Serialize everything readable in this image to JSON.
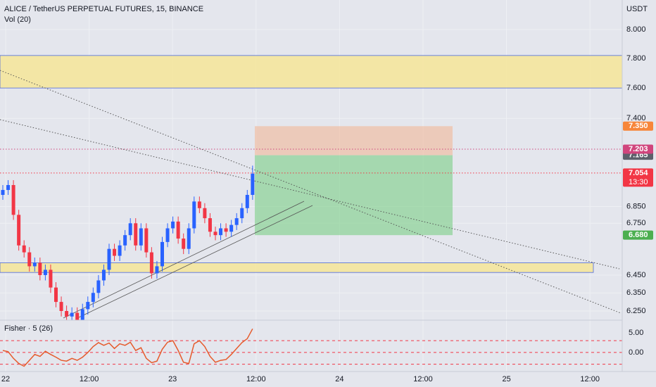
{
  "chart_data": {
    "type": "candlestick",
    "title": "ALICE / TetherUS PERPETUAL FUTURES, 15, BINANCE",
    "volume_label": "Vol (20)",
    "currency": "USDT",
    "log_scale": true,
    "grid": true,
    "up_color": "#2962ff",
    "down_color": "#f23645",
    "ylim": [
      6.2,
      8.21
    ],
    "yticks": [
      {
        "value": 8,
        "label": "8.000"
      },
      {
        "value": 7.8,
        "label": "7.800"
      },
      {
        "value": 7.6,
        "label": "7.600"
      },
      {
        "value": 7.4,
        "label": "7.400"
      },
      {
        "value": 6.85,
        "label": "6.850"
      },
      {
        "value": 6.75,
        "label": "6.750"
      },
      {
        "value": 6.45,
        "label": "6.450"
      },
      {
        "value": 6.35,
        "label": "6.350"
      },
      {
        "value": 6.25,
        "label": "6.250"
      }
    ],
    "xtick_labels": [
      "22",
      "12:00",
      "23",
      "12:00",
      "24",
      "12:00",
      "25",
      "12:00"
    ],
    "open": [
      6.92,
      6.95,
      6.98,
      6.8,
      6.62,
      6.58,
      6.5,
      6.52,
      6.45,
      6.48,
      6.38,
      6.3,
      6.25,
      6.22,
      6.24,
      6.2,
      6.26,
      6.3,
      6.35,
      6.42,
      6.48,
      6.6,
      6.56,
      6.62,
      6.68,
      6.75,
      6.62,
      6.72,
      6.58,
      6.46,
      6.5,
      6.64,
      6.72,
      6.76,
      6.66,
      6.6,
      6.72,
      6.88,
      6.84,
      6.78,
      6.7,
      6.68,
      6.72,
      6.7,
      6.74,
      6.78,
      6.84,
      6.92
    ],
    "high": [
      6.98,
      7.01,
      7.01,
      6.83,
      6.65,
      6.61,
      6.55,
      6.55,
      6.51,
      6.51,
      6.41,
      6.33,
      6.28,
      6.27,
      6.27,
      6.29,
      6.33,
      6.38,
      6.45,
      6.51,
      6.63,
      6.63,
      6.65,
      6.71,
      6.78,
      6.78,
      6.75,
      6.75,
      6.61,
      6.53,
      6.67,
      6.75,
      6.79,
      6.79,
      6.69,
      6.75,
      6.91,
      6.91,
      6.87,
      6.81,
      6.73,
      6.75,
      6.75,
      6.77,
      6.81,
      6.87,
      6.95,
      7.1
    ],
    "low": [
      6.89,
      6.92,
      6.77,
      6.59,
      6.55,
      6.47,
      6.47,
      6.42,
      6.42,
      6.35,
      6.27,
      6.22,
      6.2,
      6.2,
      6.2,
      6.2,
      6.23,
      6.27,
      6.32,
      6.39,
      6.45,
      6.53,
      6.53,
      6.59,
      6.65,
      6.59,
      6.59,
      6.55,
      6.43,
      6.43,
      6.47,
      6.61,
      6.69,
      6.63,
      6.57,
      6.57,
      6.69,
      6.81,
      6.75,
      6.67,
      6.65,
      6.65,
      6.67,
      6.67,
      6.71,
      6.75,
      6.81,
      6.89
    ],
    "close": [
      6.95,
      6.98,
      6.8,
      6.62,
      6.58,
      6.5,
      6.52,
      6.45,
      6.48,
      6.38,
      6.3,
      6.25,
      6.22,
      6.24,
      6.2,
      6.26,
      6.3,
      6.35,
      6.42,
      6.48,
      6.6,
      6.56,
      6.62,
      6.68,
      6.75,
      6.62,
      6.72,
      6.58,
      6.46,
      6.5,
      6.64,
      6.72,
      6.76,
      6.66,
      6.6,
      6.72,
      6.88,
      6.84,
      6.78,
      6.7,
      6.68,
      6.72,
      6.7,
      6.74,
      6.78,
      6.84,
      6.92,
      7.05
    ],
    "zones": [
      [
        7.6,
        7.82
      ],
      [
        6.465,
        6.52
      ]
    ],
    "zone_color": "#f5e79e",
    "position": {
      "stop": {
        "value": 7.35,
        "label": "7.350",
        "color": "#f7863a"
      },
      "entry": {
        "value": 7.165,
        "label": "7.165",
        "color": "#5d606b"
      },
      "target": {
        "value": 6.68,
        "label": "6.680",
        "color": "#4caf50"
      }
    },
    "lines": [
      {
        "value": 7.203,
        "label": "7.203",
        "color": "#d0457d"
      },
      {
        "value": 7.054,
        "label": "7.054",
        "color": "#f23645",
        "countdown": "13:30"
      }
    ],
    "indicator": {
      "title": "Fisher · 5 (26)",
      "color": "#e65a2b",
      "level_color": "#f23645",
      "ylim": [
        -5.2,
        8.2
      ],
      "yticks": [
        {
          "value": 5,
          "label": "5.00"
        },
        {
          "value": 0,
          "label": "0.00"
        }
      ],
      "levels": [
        3,
        0,
        -3
      ],
      "values": [
        0.5,
        0.2,
        -1.5,
        -2.8,
        -3.5,
        -2,
        -0.5,
        -1,
        0.3,
        -0.5,
        -1.2,
        -2,
        -2.2,
        -1.5,
        -2,
        -1.2,
        0,
        1.5,
        2.5,
        1.8,
        2.4,
        1,
        2.2,
        1.8,
        2.6,
        0.5,
        1.2,
        -1.5,
        -2.6,
        -2.2,
        0.8,
        2.6,
        3,
        0.5,
        -2.5,
        -2.8,
        2.2,
        3,
        1.5,
        -1,
        -2.5,
        -2,
        -1.8,
        -0.5,
        1,
        2.5,
        3.5,
        6
      ]
    }
  }
}
